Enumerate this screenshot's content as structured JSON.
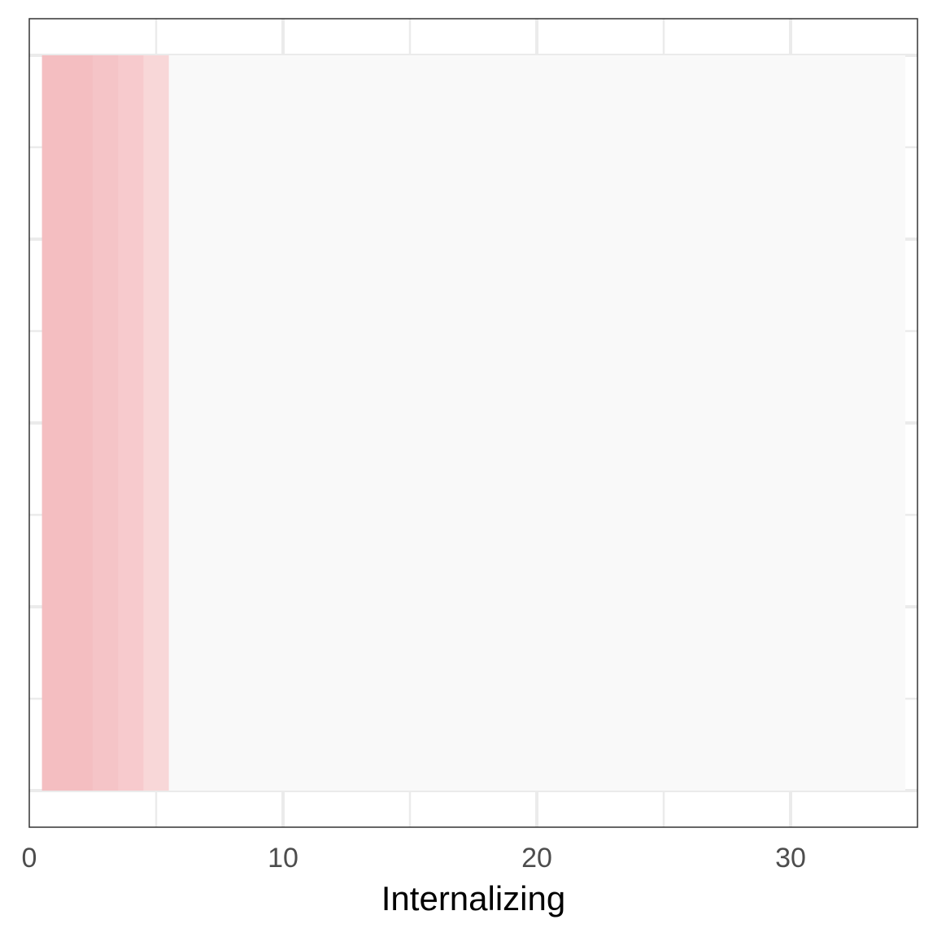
{
  "chart_data": {
    "type": "heatmap",
    "title": "",
    "xlabel": "Internalizing",
    "ylabel": "",
    "xlim": [
      0,
      35
    ],
    "ylim": [
      0,
      1
    ],
    "x_ticks": [
      "0",
      "10",
      "20",
      "30"
    ],
    "grid": true,
    "legend": "none",
    "cells": [
      {
        "x": 1,
        "shade": 0.95,
        "color": "#F4BEC1"
      },
      {
        "x": 2,
        "shade": 0.95,
        "color": "#F4BEC1"
      },
      {
        "x": 3,
        "shade": 0.8,
        "color": "#F5C4C7"
      },
      {
        "x": 4,
        "shade": 0.65,
        "color": "#F7CACD"
      },
      {
        "x": 5,
        "shade": 0.4,
        "color": "#F8D7D8"
      },
      {
        "x": 6,
        "shade": 0.0,
        "color": "#F9F9F9"
      },
      {
        "x": 7,
        "shade": 0.0,
        "color": "#F9F9F9"
      },
      {
        "x": 8,
        "shade": 0.0,
        "color": "#F9F9F9"
      },
      {
        "x": 9,
        "shade": 0.0,
        "color": "#F9F9F9"
      },
      {
        "x": 10,
        "shade": 0.0,
        "color": "#F9F9F9"
      },
      {
        "x": 11,
        "shade": 0.0,
        "color": "#F9F9F9"
      },
      {
        "x": 12,
        "shade": 0.0,
        "color": "#F9F9F9"
      },
      {
        "x": 13,
        "shade": 0.0,
        "color": "#F9F9F9"
      },
      {
        "x": 14,
        "shade": 0.0,
        "color": "#F9F9F9"
      },
      {
        "x": 15,
        "shade": 0.0,
        "color": "#F9F9F9"
      },
      {
        "x": 16,
        "shade": 0.0,
        "color": "#F9F9F9"
      },
      {
        "x": 17,
        "shade": 0.0,
        "color": "#F9F9F9"
      },
      {
        "x": 18,
        "shade": 0.0,
        "color": "#F9F9F9"
      },
      {
        "x": 19,
        "shade": 0.0,
        "color": "#F9F9F9"
      },
      {
        "x": 20,
        "shade": 0.0,
        "color": "#F9F9F9"
      },
      {
        "x": 21,
        "shade": 0.0,
        "color": "#F9F9F9"
      },
      {
        "x": 22,
        "shade": 0.0,
        "color": "#F9F9F9"
      },
      {
        "x": 23,
        "shade": 0.0,
        "color": "#F9F9F9"
      },
      {
        "x": 24,
        "shade": 0.0,
        "color": "#F9F9F9"
      },
      {
        "x": 25,
        "shade": 0.0,
        "color": "#F9F9F9"
      },
      {
        "x": 26,
        "shade": 0.0,
        "color": "#F9F9F9"
      },
      {
        "x": 27,
        "shade": 0.0,
        "color": "#F9F9F9"
      },
      {
        "x": 28,
        "shade": 0.0,
        "color": "#F9F9F9"
      },
      {
        "x": 29,
        "shade": 0.0,
        "color": "#F9F9F9"
      },
      {
        "x": 30,
        "shade": 0.0,
        "color": "#F9F9F9"
      },
      {
        "x": 31,
        "shade": 0.0,
        "color": "#F9F9F9"
      },
      {
        "x": 32,
        "shade": 0.0,
        "color": "#F9F9F9"
      },
      {
        "x": 33,
        "shade": 0.0,
        "color": "#F9F9F9"
      },
      {
        "x": 34,
        "shade": 0.0,
        "color": "#F9F9F9"
      }
    ],
    "colors": {
      "grid": "#EBEBEB",
      "panel_border": "#333333",
      "tick_text": "#4D4D4D"
    }
  }
}
